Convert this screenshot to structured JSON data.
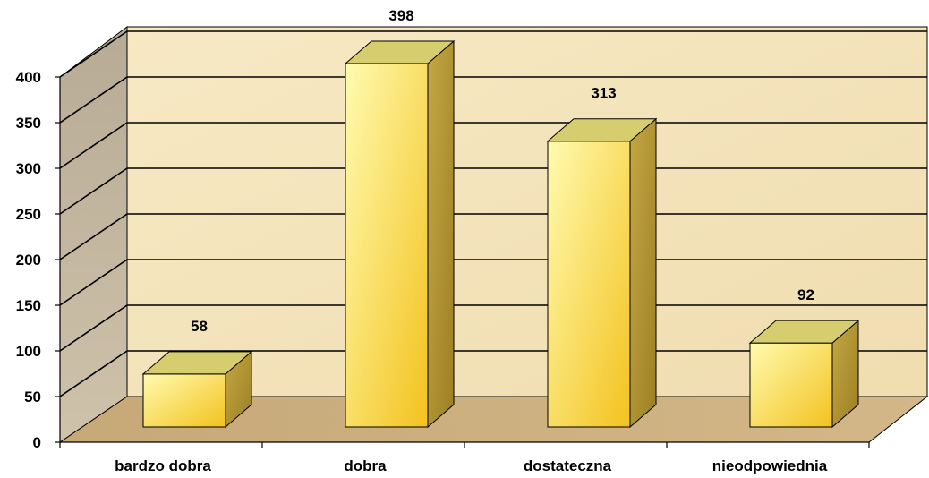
{
  "chart_data": {
    "type": "bar",
    "style": "3d-column",
    "categories": [
      "bardzo dobra",
      "dobra",
      "dostateczna",
      "nieodpowiednia"
    ],
    "values": [
      58,
      398,
      313,
      92
    ],
    "data_labels": [
      "58",
      "398",
      "313",
      "92"
    ],
    "y_ticks": [
      0,
      50,
      100,
      150,
      200,
      250,
      300,
      350,
      400
    ],
    "ylim": [
      0,
      400
    ],
    "grid": true,
    "legend": "none",
    "colors": {
      "back_wall": "#f4e4bd",
      "side_wall": "#c2b59e",
      "floor": "#c8ab7c",
      "bar_front_light": "#fffbb0",
      "bar_front_dark": "#f3c21e",
      "bar_top": "#d6cd6e",
      "bar_side": "#b59a36",
      "gridline": "#000000"
    }
  }
}
